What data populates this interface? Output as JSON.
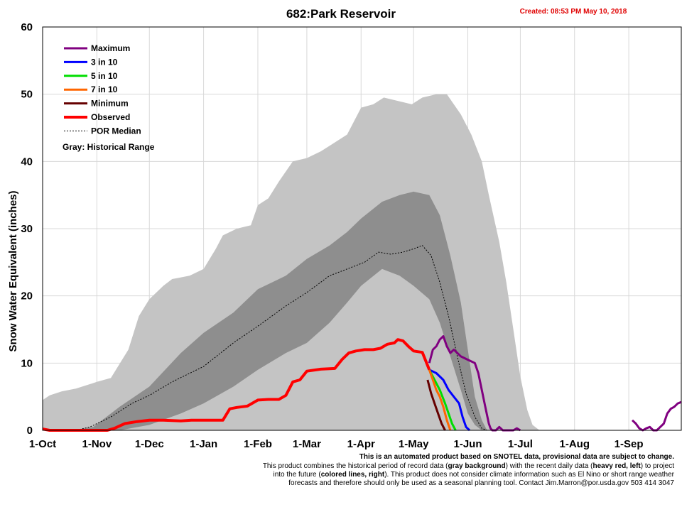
{
  "chart_data": {
    "type": "line",
    "title": "682:Park Reservoir",
    "created": "Created: 08:53 PM May 10, 2018",
    "ylabel": "Snow Water Equivalent (inches)",
    "xlabel": "",
    "ylim": [
      0,
      60
    ],
    "yticks": [
      0,
      10,
      20,
      30,
      40,
      50,
      60
    ],
    "x_unit": "day of water year (1 = Oct 1)",
    "xlim": [
      1,
      366
    ],
    "xticks": [
      {
        "label": "1-Oct",
        "day": 1
      },
      {
        "label": "1-Nov",
        "day": 32
      },
      {
        "label": "1-Dec",
        "day": 62
      },
      {
        "label": "1-Jan",
        "day": 93
      },
      {
        "label": "1-Feb",
        "day": 124
      },
      {
        "label": "1-Mar",
        "day": 152
      },
      {
        "label": "1-Apr",
        "day": 183
      },
      {
        "label": "1-May",
        "day": 213
      },
      {
        "label": "1-Jun",
        "day": 244
      },
      {
        "label": "1-Jul",
        "day": 274
      },
      {
        "label": "1-Aug",
        "day": 305
      },
      {
        "label": "1-Sep",
        "day": 336
      }
    ],
    "grid": true,
    "legend_position": "top-left",
    "legend": [
      {
        "label": "Maximum",
        "color": "#800080",
        "style": "solid"
      },
      {
        "label": "3 in 10",
        "color": "#0000ff",
        "style": "solid"
      },
      {
        "label": "5 in 10",
        "color": "#00dd00",
        "style": "solid"
      },
      {
        "label": "7 in 10",
        "color": "#ff6600",
        "style": "solid"
      },
      {
        "label": "Minimum",
        "color": "#660000",
        "style": "solid"
      },
      {
        "label": "Observed",
        "color": "#ff0000",
        "style": "solid-thick"
      },
      {
        "label": "POR Median",
        "color": "#000000",
        "style": "dotted"
      }
    ],
    "legend_note": "Gray: Historical Range",
    "historical_range_outer": {
      "x": [
        1,
        5,
        12,
        20,
        32,
        40,
        50,
        56,
        62,
        70,
        75,
        85,
        93,
        100,
        104,
        112,
        120,
        124,
        130,
        136,
        144,
        152,
        160,
        166,
        175,
        183,
        190,
        196,
        204,
        212,
        218,
        226,
        232,
        240,
        246,
        252,
        256,
        262,
        266,
        270,
        274,
        278,
        281,
        285,
        366
      ],
      "upper": [
        4.5,
        5.2,
        5.8,
        6.2,
        7.2,
        7.8,
        12,
        17,
        19.5,
        21.5,
        22.5,
        23,
        24,
        27,
        29,
        30,
        30.5,
        33.5,
        34.5,
        37,
        40,
        40.5,
        41.5,
        42.5,
        44,
        48,
        48.5,
        49.5,
        49,
        48.5,
        49.5,
        50,
        50,
        47,
        44,
        40,
        35,
        28,
        22,
        15,
        8,
        3,
        0.8,
        0,
        0
      ],
      "lower": [
        0,
        0,
        0,
        0,
        0,
        0,
        0,
        0,
        0,
        0,
        0,
        0,
        0,
        0,
        0,
        0,
        0,
        0,
        0,
        0,
        0,
        0,
        0,
        0,
        0,
        0,
        0,
        0,
        0,
        0,
        0,
        0,
        0,
        0,
        0,
        0,
        0,
        0,
        0,
        0,
        0,
        0,
        0,
        0,
        0
      ]
    },
    "inner_band": {
      "x": [
        1,
        18,
        30,
        45,
        62,
        80,
        93,
        110,
        124,
        140,
        152,
        165,
        175,
        183,
        195,
        205,
        213,
        222,
        228,
        234,
        240,
        244,
        248,
        252,
        255
      ],
      "upper": [
        0,
        0,
        0.5,
        3.5,
        6.5,
        11.5,
        14.5,
        17.5,
        21,
        23,
        25.5,
        27.5,
        29.5,
        31.5,
        34,
        35,
        35.5,
        35,
        32,
        26,
        19,
        12,
        5,
        1.5,
        0
      ],
      "lower": [
        0,
        0,
        0,
        0,
        0.8,
        2.5,
        4,
        6.5,
        9,
        11.5,
        13,
        16,
        19,
        21.5,
        24,
        23,
        21.5,
        19.5,
        16,
        11,
        6,
        2.5,
        0.8,
        0,
        0
      ]
    },
    "por_median": {
      "x": [
        1,
        20,
        28,
        40,
        52,
        62,
        75,
        93,
        110,
        124,
        140,
        152,
        165,
        175,
        185,
        193,
        200,
        207,
        213,
        218,
        223,
        228,
        233,
        238,
        243,
        248,
        252,
        255
      ],
      "y": [
        0,
        0,
        0.5,
        2,
        4,
        5.2,
        7.2,
        9.5,
        13,
        15.5,
        18.5,
        20.5,
        23,
        24,
        25,
        26.5,
        26.2,
        26.5,
        27,
        27.5,
        26,
        22,
        17,
        11,
        5.5,
        2,
        0.3,
        0
      ]
    },
    "observed": {
      "x": [
        1,
        5,
        10,
        30,
        38,
        42,
        48,
        55,
        62,
        70,
        80,
        86,
        92,
        98,
        104,
        108,
        112,
        118,
        124,
        130,
        136,
        140,
        144,
        148,
        152,
        160,
        168,
        172,
        176,
        180,
        185,
        190,
        194,
        198,
        202,
        204,
        207,
        210,
        213,
        218,
        222
      ],
      "y": [
        0.2,
        0,
        0,
        0,
        0,
        0.3,
        1,
        1.3,
        1.5,
        1.5,
        1.4,
        1.5,
        1.5,
        1.5,
        1.5,
        3.2,
        3.4,
        3.6,
        4.5,
        4.6,
        4.6,
        5.2,
        7.2,
        7.5,
        8.8,
        9.1,
        9.2,
        10.5,
        11.5,
        11.8,
        12,
        12,
        12.2,
        12.8,
        13,
        13.5,
        13.3,
        12.5,
        11.8,
        11.6,
        9
      ]
    },
    "forecasts": [
      {
        "name": "Maximum",
        "color": "#800080",
        "x": [
          222,
          224,
          226,
          228,
          230,
          232,
          234,
          236,
          238,
          240,
          244,
          248,
          250,
          252,
          254,
          256,
          257,
          258,
          260,
          262,
          264,
          266,
          268,
          270,
          272,
          274
        ],
        "y": [
          10,
          12,
          12.5,
          13.5,
          14,
          12.5,
          11.5,
          12,
          11.5,
          11,
          10.5,
          10,
          8.5,
          6,
          3.5,
          1,
          0.3,
          0,
          0,
          0.5,
          0,
          0,
          0,
          0,
          0.3,
          0
        ]
      },
      {
        "name": "3 in 10",
        "color": "#0000ff",
        "x": [
          222,
          226,
          230,
          233,
          236,
          239,
          241,
          243,
          245
        ],
        "y": [
          9,
          8.5,
          7.5,
          6,
          5,
          4,
          2,
          0.5,
          0
        ]
      },
      {
        "name": "5 in 10",
        "color": "#00dd00",
        "x": [
          222,
          225,
          228,
          231,
          233,
          235,
          237
        ],
        "y": [
          9,
          7.5,
          6,
          4,
          2.5,
          1,
          0
        ]
      },
      {
        "name": "7 in 10",
        "color": "#ff6600",
        "x": [
          222,
          224,
          226,
          228,
          230,
          232,
          234
        ],
        "y": [
          9,
          7.5,
          6,
          5,
          3.5,
          1.5,
          0
        ]
      },
      {
        "name": "Minimum",
        "color": "#660000",
        "x": [
          221,
          223,
          225,
          227,
          229,
          231
        ],
        "y": [
          7.5,
          5.5,
          4,
          2.5,
          1,
          0
        ]
      },
      {
        "name": "Maximum (late)",
        "color": "#800080",
        "x": [
          338,
          340,
          342,
          344,
          346,
          348,
          350,
          352,
          354,
          356,
          358,
          360,
          362,
          364,
          366
        ],
        "y": [
          1.5,
          1,
          0.3,
          0,
          0.3,
          0.5,
          0,
          0,
          0.5,
          1,
          2.5,
          3.2,
          3.5,
          4,
          4.2
        ]
      }
    ]
  },
  "footer": {
    "line1": "This is an automated product based on SNOTEL data, provisional data are subject to change.",
    "line2a": "This product combines the historical period of record data (",
    "line2b": "gray background",
    "line2c": ") with the recent daily data (",
    "line2d": "heavy red, left",
    "line2e": ") to project",
    "line3a": "into the future (",
    "line3b": "colored lines, right",
    "line3c": "). This product does not consider climate information such as El Nino or short range weather",
    "line4": "forecasts and therefore should only be used as a seasonal planning tool. Contact Jim.Marron@por.usda.gov 503 414 3047"
  }
}
